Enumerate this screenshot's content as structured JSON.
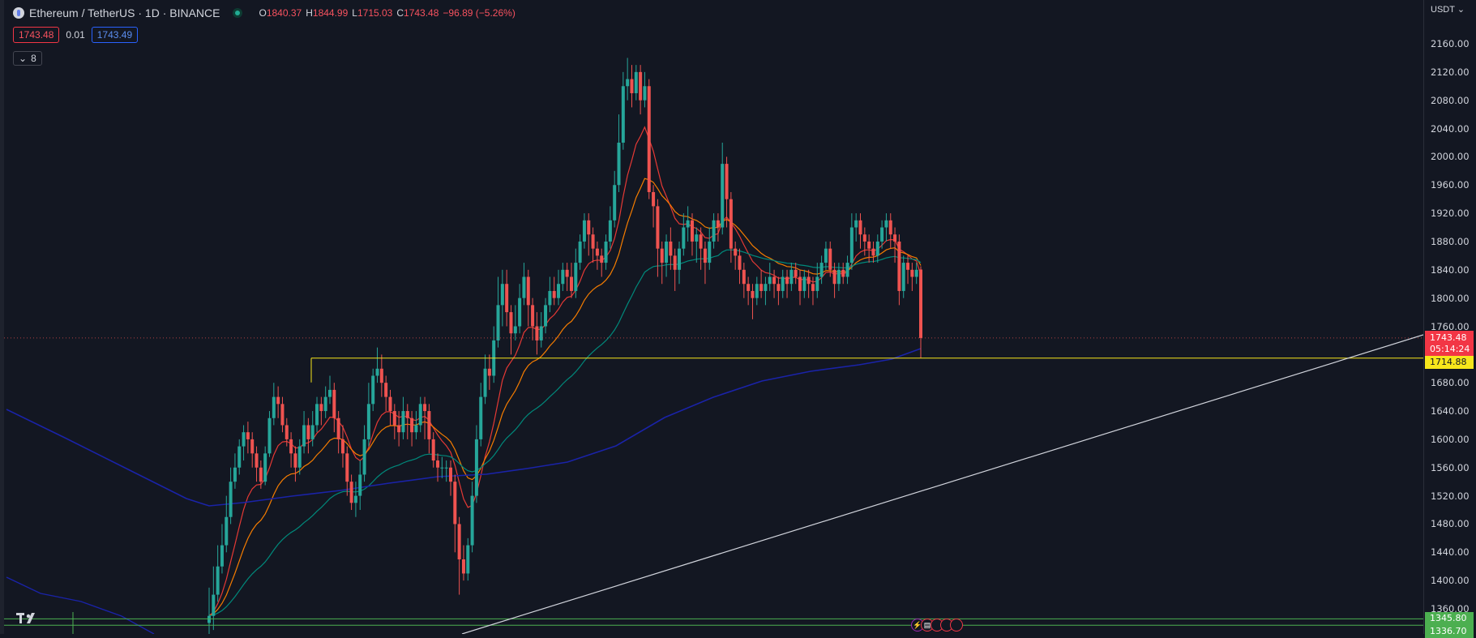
{
  "legend": {
    "symbol": "Ethereum / TetherUS · 1D · BINANCE",
    "ohlc": [
      {
        "key": "O",
        "value": "1840.37"
      },
      {
        "key": "H",
        "value": "1844.99"
      },
      {
        "key": "L",
        "value": "1715.03"
      },
      {
        "key": "C",
        "value": "1743.48"
      }
    ],
    "change": "−96.89 (−5.26%)",
    "icon": "ethereum-logo-icon"
  },
  "quote": {
    "bid": "1743.48",
    "spread": "0.01",
    "ask": "1743.49"
  },
  "indicators_toggle": {
    "count": "8",
    "icon": "chevron-down-icon"
  },
  "price_axis": {
    "currency": "USDT",
    "ticks": [
      "2160.00",
      "2120.00",
      "2080.00",
      "2040.00",
      "2000.00",
      "1960.00",
      "1920.00",
      "1880.00",
      "1840.00",
      "1800.00",
      "1760.00",
      "1680.00",
      "1640.00",
      "1600.00",
      "1560.00",
      "1520.00",
      "1480.00",
      "1440.00",
      "1400.00",
      "1360.00"
    ],
    "last_price": "1743.48",
    "countdown": "05:14:24",
    "level_line": "1714.88",
    "green_level_1": "1345.80",
    "green_level_2": "1336.70"
  },
  "branding": {
    "logo_text": "17"
  },
  "colors": {
    "background": "#131722",
    "up": "#26a69a",
    "down": "#ef5350",
    "ema_fast": "#e53935",
    "ema_mid": "#f57c00",
    "ema_slow": "#00897b",
    "ema_long": "#1a23a8",
    "level": "#f7e61b",
    "trendline": "#d1d4dc",
    "green_level": "#4caf50"
  },
  "chart_data": {
    "type": "candlestick",
    "symbol": "ETHUSDT",
    "interval": "1D",
    "y_range": [
      1320,
      2180
    ],
    "candles": [
      [
        1350,
        1340,
        1390,
        1320
      ],
      [
        1380,
        1350,
        1420,
        1330
      ],
      [
        1420,
        1380,
        1450,
        1370
      ],
      [
        1450,
        1420,
        1480,
        1410
      ],
      [
        1490,
        1450,
        1520,
        1440
      ],
      [
        1540,
        1490,
        1560,
        1480
      ],
      [
        1560,
        1540,
        1580,
        1530
      ],
      [
        1590,
        1560,
        1600,
        1550
      ],
      [
        1610,
        1590,
        1620,
        1570
      ],
      [
        1600,
        1610,
        1625,
        1580
      ],
      [
        1580,
        1600,
        1610,
        1560
      ],
      [
        1560,
        1580,
        1590,
        1540
      ],
      [
        1540,
        1560,
        1570,
        1530
      ],
      [
        1580,
        1540,
        1590,
        1535
      ],
      [
        1630,
        1580,
        1640,
        1575
      ],
      [
        1660,
        1630,
        1680,
        1620
      ],
      [
        1650,
        1660,
        1675,
        1630
      ],
      [
        1620,
        1650,
        1660,
        1610
      ],
      [
        1600,
        1620,
        1630,
        1590
      ],
      [
        1580,
        1600,
        1610,
        1560
      ],
      [
        1560,
        1580,
        1590,
        1540
      ],
      [
        1590,
        1560,
        1600,
        1550
      ],
      [
        1620,
        1590,
        1640,
        1580
      ],
      [
        1600,
        1620,
        1630,
        1580
      ],
      [
        1620,
        1600,
        1640,
        1590
      ],
      [
        1650,
        1620,
        1660,
        1610
      ],
      [
        1640,
        1650,
        1660,
        1620
      ],
      [
        1660,
        1640,
        1675,
        1630
      ],
      [
        1670,
        1660,
        1690,
        1650
      ],
      [
        1630,
        1670,
        1680,
        1610
      ],
      [
        1600,
        1630,
        1640,
        1580
      ],
      [
        1580,
        1600,
        1620,
        1560
      ],
      [
        1540,
        1580,
        1590,
        1520
      ],
      [
        1510,
        1540,
        1550,
        1500
      ],
      [
        1520,
        1510,
        1540,
        1490
      ],
      [
        1550,
        1520,
        1570,
        1500
      ],
      [
        1600,
        1550,
        1620,
        1540
      ],
      [
        1650,
        1600,
        1680,
        1590
      ],
      [
        1690,
        1650,
        1700,
        1640
      ],
      [
        1700,
        1690,
        1730,
        1680
      ],
      [
        1680,
        1700,
        1720,
        1660
      ],
      [
        1660,
        1680,
        1690,
        1640
      ],
      [
        1640,
        1660,
        1670,
        1620
      ],
      [
        1620,
        1640,
        1650,
        1600
      ],
      [
        1610,
        1620,
        1640,
        1590
      ],
      [
        1640,
        1610,
        1660,
        1600
      ],
      [
        1630,
        1640,
        1650,
        1600
      ],
      [
        1610,
        1630,
        1640,
        1590
      ],
      [
        1620,
        1610,
        1640,
        1600
      ],
      [
        1650,
        1620,
        1660,
        1610
      ],
      [
        1640,
        1650,
        1660,
        1600
      ],
      [
        1600,
        1640,
        1650,
        1580
      ],
      [
        1570,
        1600,
        1610,
        1560
      ],
      [
        1560,
        1570,
        1580,
        1540
      ],
      [
        1560,
        1560,
        1575,
        1545
      ],
      [
        1560,
        1560,
        1570,
        1540
      ],
      [
        1540,
        1560,
        1570,
        1520
      ],
      [
        1480,
        1540,
        1550,
        1440
      ],
      [
        1430,
        1480,
        1490,
        1380
      ],
      [
        1410,
        1430,
        1450,
        1400
      ],
      [
        1450,
        1410,
        1460,
        1400
      ],
      [
        1520,
        1450,
        1540,
        1440
      ],
      [
        1600,
        1520,
        1620,
        1510
      ],
      [
        1660,
        1600,
        1680,
        1590
      ],
      [
        1700,
        1660,
        1720,
        1650
      ],
      [
        1690,
        1700,
        1720,
        1670
      ],
      [
        1740,
        1690,
        1760,
        1680
      ],
      [
        1790,
        1740,
        1830,
        1730
      ],
      [
        1820,
        1790,
        1840,
        1760
      ],
      [
        1780,
        1820,
        1840,
        1760
      ],
      [
        1750,
        1780,
        1790,
        1720
      ],
      [
        1760,
        1750,
        1790,
        1740
      ],
      [
        1800,
        1760,
        1820,
        1750
      ],
      [
        1830,
        1800,
        1850,
        1790
      ],
      [
        1790,
        1830,
        1840,
        1760
      ],
      [
        1760,
        1790,
        1800,
        1740
      ],
      [
        1740,
        1760,
        1780,
        1720
      ],
      [
        1760,
        1740,
        1780,
        1730
      ],
      [
        1790,
        1760,
        1800,
        1750
      ],
      [
        1810,
        1790,
        1830,
        1780
      ],
      [
        1800,
        1810,
        1830,
        1790
      ],
      [
        1820,
        1800,
        1840,
        1790
      ],
      [
        1840,
        1820,
        1850,
        1810
      ],
      [
        1830,
        1840,
        1850,
        1810
      ],
      [
        1810,
        1830,
        1850,
        1800
      ],
      [
        1850,
        1810,
        1870,
        1800
      ],
      [
        1880,
        1850,
        1890,
        1840
      ],
      [
        1910,
        1880,
        1920,
        1870
      ],
      [
        1890,
        1910,
        1920,
        1860
      ],
      [
        1870,
        1890,
        1900,
        1850
      ],
      [
        1860,
        1870,
        1880,
        1840
      ],
      [
        1850,
        1860,
        1870,
        1830
      ],
      [
        1880,
        1850,
        1890,
        1840
      ],
      [
        1910,
        1880,
        1930,
        1870
      ],
      [
        1960,
        1910,
        1980,
        1900
      ],
      [
        2020,
        1960,
        2060,
        1950
      ],
      [
        2100,
        2020,
        2120,
        2010
      ],
      [
        2110,
        2100,
        2140,
        2080
      ],
      [
        2090,
        2110,
        2130,
        2070
      ],
      [
        2120,
        2090,
        2130,
        2080
      ],
      [
        2080,
        2120,
        2130,
        2060
      ],
      [
        2100,
        2080,
        2120,
        2070
      ],
      [
        1950,
        2100,
        2110,
        1940
      ],
      [
        1930,
        1950,
        1960,
        1900
      ],
      [
        1870,
        1930,
        1940,
        1830
      ],
      [
        1850,
        1870,
        1880,
        1820
      ],
      [
        1880,
        1850,
        1890,
        1830
      ],
      [
        1860,
        1880,
        1900,
        1840
      ],
      [
        1840,
        1860,
        1870,
        1810
      ],
      [
        1870,
        1840,
        1880,
        1820
      ],
      [
        1900,
        1870,
        1920,
        1860
      ],
      [
        1910,
        1900,
        1930,
        1880
      ],
      [
        1880,
        1910,
        1920,
        1860
      ],
      [
        1890,
        1880,
        1900,
        1850
      ],
      [
        1870,
        1890,
        1900,
        1840
      ],
      [
        1850,
        1870,
        1880,
        1820
      ],
      [
        1880,
        1850,
        1900,
        1840
      ],
      [
        1910,
        1880,
        1920,
        1870
      ],
      [
        1900,
        1910,
        1920,
        1880
      ],
      [
        1990,
        1900,
        2020,
        1890
      ],
      [
        1940,
        1990,
        2000,
        1900
      ],
      [
        1870,
        1940,
        1950,
        1850
      ],
      [
        1860,
        1870,
        1880,
        1840
      ],
      [
        1840,
        1860,
        1870,
        1820
      ],
      [
        1820,
        1840,
        1850,
        1800
      ],
      [
        1810,
        1820,
        1830,
        1790
      ],
      [
        1800,
        1810,
        1820,
        1770
      ],
      [
        1820,
        1800,
        1830,
        1790
      ],
      [
        1810,
        1820,
        1840,
        1800
      ],
      [
        1820,
        1810,
        1830,
        1790
      ],
      [
        1830,
        1820,
        1850,
        1810
      ],
      [
        1820,
        1830,
        1840,
        1800
      ],
      [
        1810,
        1820,
        1830,
        1790
      ],
      [
        1830,
        1810,
        1840,
        1800
      ],
      [
        1820,
        1830,
        1840,
        1800
      ],
      [
        1840,
        1820,
        1850,
        1810
      ],
      [
        1830,
        1840,
        1850,
        1820
      ],
      [
        1810,
        1830,
        1840,
        1790
      ],
      [
        1830,
        1810,
        1840,
        1800
      ],
      [
        1820,
        1830,
        1840,
        1800
      ],
      [
        1810,
        1820,
        1830,
        1790
      ],
      [
        1830,
        1810,
        1850,
        1800
      ],
      [
        1850,
        1830,
        1860,
        1820
      ],
      [
        1870,
        1850,
        1880,
        1840
      ],
      [
        1840,
        1870,
        1880,
        1830
      ],
      [
        1820,
        1840,
        1850,
        1800
      ],
      [
        1840,
        1820,
        1850,
        1810
      ],
      [
        1830,
        1840,
        1850,
        1820
      ],
      [
        1850,
        1830,
        1860,
        1820
      ],
      [
        1900,
        1850,
        1920,
        1840
      ],
      [
        1910,
        1900,
        1920,
        1880
      ],
      [
        1890,
        1910,
        1920,
        1870
      ],
      [
        1880,
        1890,
        1900,
        1860
      ],
      [
        1870,
        1880,
        1890,
        1850
      ],
      [
        1860,
        1870,
        1880,
        1850
      ],
      [
        1880,
        1860,
        1890,
        1850
      ],
      [
        1900,
        1880,
        1910,
        1870
      ],
      [
        1910,
        1900,
        1920,
        1880
      ],
      [
        1890,
        1910,
        1920,
        1870
      ],
      [
        1880,
        1890,
        1900,
        1850
      ],
      [
        1810,
        1880,
        1890,
        1790
      ],
      [
        1850,
        1810,
        1860,
        1800
      ],
      [
        1840,
        1850,
        1860,
        1820
      ],
      [
        1830,
        1840,
        1850,
        1810
      ],
      [
        1840,
        1830,
        1850,
        1820
      ],
      [
        1743.48,
        1840.37,
        1844.99,
        1715.03
      ]
    ],
    "candle_format": "[close, open, high, low]",
    "ema_lines": [
      {
        "name": "",
        "color": "#e53935"
      },
      {
        "name": "",
        "color": "#f57c00"
      },
      {
        "name": "",
        "color": "#00897b"
      },
      {
        "name": "",
        "color": "#1a23a8"
      }
    ],
    "horizontal_level": 1714.88,
    "green_levels": [
      1345.8,
      1336.7
    ],
    "trendline": {
      "from": [
        0,
        1300
      ],
      "to": [
        1,
        1750
      ]
    }
  }
}
